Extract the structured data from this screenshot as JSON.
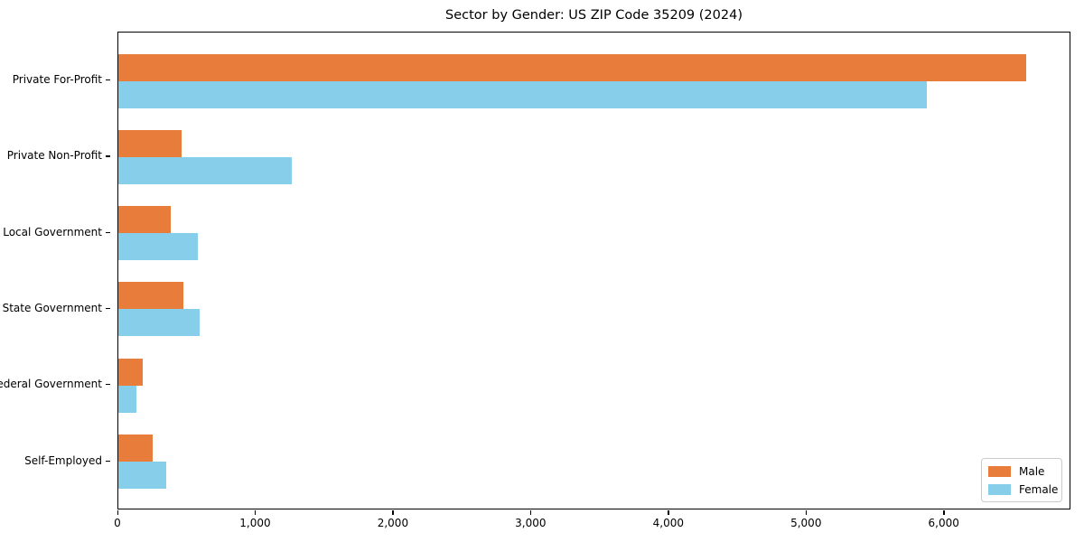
{
  "chart_data": {
    "type": "bar",
    "orientation": "horizontal",
    "title": "Sector by Gender: US ZIP Code 35209 (2024)",
    "categories": [
      "Private For-Profit",
      "Private Non-Profit",
      "Local Government",
      "State Government",
      "Federal Government",
      "Self-Employed"
    ],
    "series": [
      {
        "name": "Male",
        "color": "#e87c3a",
        "values": [
          6590,
          460,
          380,
          475,
          180,
          250
        ]
      },
      {
        "name": "Female",
        "color": "#87ceeb",
        "values": [
          5870,
          1260,
          575,
          590,
          130,
          345
        ]
      }
    ],
    "xlim": [
      0,
      6920
    ],
    "x_ticks": [
      {
        "value": 0,
        "label": "0"
      },
      {
        "value": 1000,
        "label": "1,000"
      },
      {
        "value": 2000,
        "label": "2,000"
      },
      {
        "value": 3000,
        "label": "3,000"
      },
      {
        "value": 4000,
        "label": "4,000"
      },
      {
        "value": 5000,
        "label": "5,000"
      },
      {
        "value": 6000,
        "label": "6,000"
      }
    ],
    "grid": false,
    "legend_position": "lower right",
    "background_color": "#ffffff",
    "spine_color": "#000000"
  }
}
